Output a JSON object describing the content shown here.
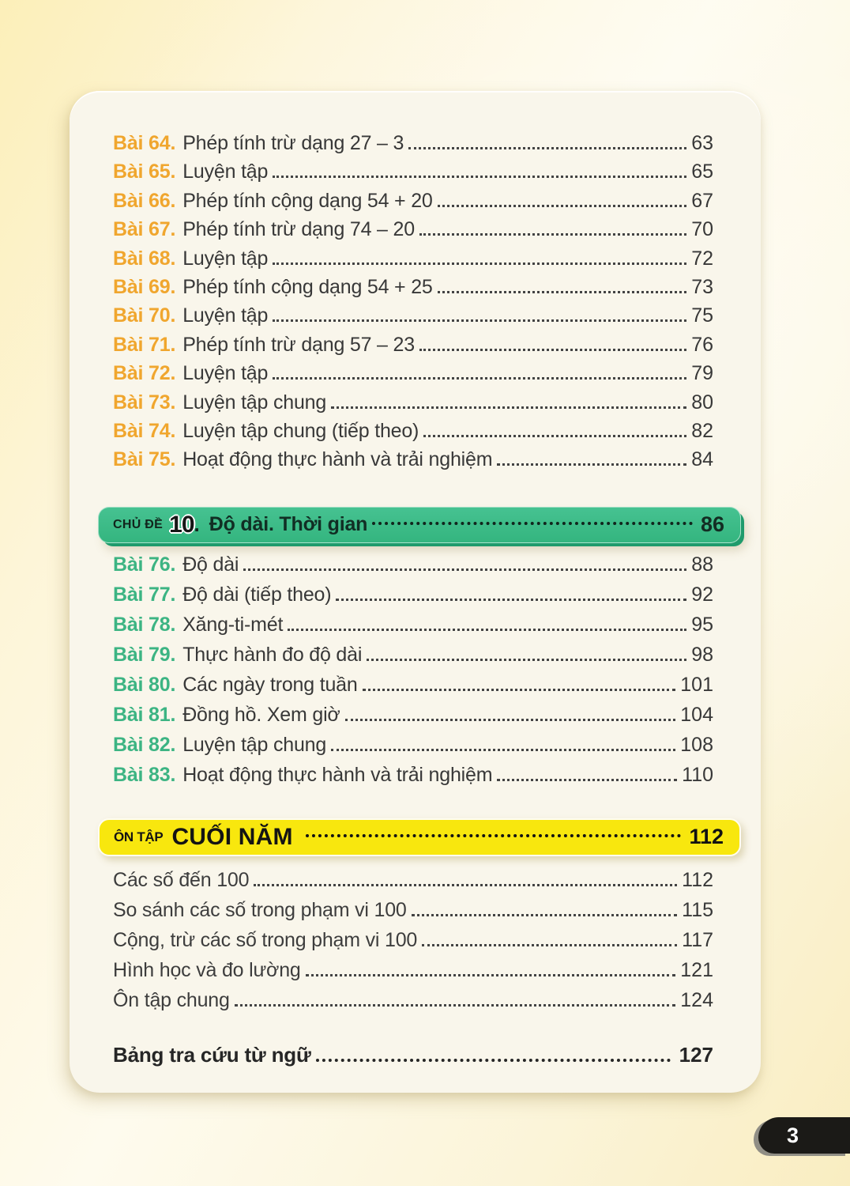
{
  "colors": {
    "lesson_label_part1": "#f0a62e",
    "lesson_label_part2": "#3cb483",
    "chapter_banner_bg": "#3bbb87",
    "review_banner_bg": "#f8e70e",
    "page_tab_bg": "#1b1a17",
    "card_bg": "#f9f6eb"
  },
  "toc": {
    "part1": {
      "items": [
        {
          "label": "Bài 64.",
          "title": "Phép tính trừ dạng 27 – 3",
          "page": "63"
        },
        {
          "label": "Bài 65.",
          "title": "Luyện tập",
          "page": "65"
        },
        {
          "label": "Bài 66.",
          "title": "Phép tính cộng dạng 54 + 20",
          "page": "67"
        },
        {
          "label": "Bài 67.",
          "title": "Phép tính trừ dạng 74 – 20",
          "page": "70"
        },
        {
          "label": "Bài 68.",
          "title": "Luyện tập",
          "page": "72"
        },
        {
          "label": "Bài 69.",
          "title": "Phép tính cộng dạng 54 + 25",
          "page": "73"
        },
        {
          "label": "Bài 70.",
          "title": "Luyện tập",
          "page": "75"
        },
        {
          "label": "Bài 71.",
          "title": "Phép tính trừ dạng 57 – 23",
          "page": "76"
        },
        {
          "label": "Bài 72.",
          "title": "Luyện tập",
          "page": "79"
        },
        {
          "label": "Bài 73.",
          "title": "Luyện tập chung",
          "page": "80"
        },
        {
          "label": "Bài 74.",
          "title": "Luyện tập chung (tiếp theo)",
          "page": "82"
        },
        {
          "label": "Bài 75.",
          "title": "Hoạt động thực hành và trải nghiệm",
          "page": "84"
        }
      ]
    },
    "chapter_banner": {
      "tag": "CHỦ ĐỀ",
      "number": "10",
      "dot": ".",
      "title": "Độ dài. Thời gian",
      "page": "86"
    },
    "part2": {
      "items": [
        {
          "label": "Bài 76.",
          "title": "Độ dài",
          "page": "88"
        },
        {
          "label": "Bài 77.",
          "title": "Độ dài (tiếp theo)",
          "page": "92"
        },
        {
          "label": "Bài 78.",
          "title": "Xăng-ti-mét",
          "page": "95"
        },
        {
          "label": "Bài 79.",
          "title": "Thực hành đo độ dài",
          "page": "98"
        },
        {
          "label": "Bài 80.",
          "title": "Các ngày trong tuần",
          "page": "101"
        },
        {
          "label": "Bài 81.",
          "title": "Đồng hồ. Xem giờ",
          "page": "104"
        },
        {
          "label": "Bài 82.",
          "title": "Luyện tập chung",
          "page": "108"
        },
        {
          "label": "Bài 83.",
          "title": "Hoạt động thực hành và trải nghiệm",
          "page": "110"
        }
      ]
    },
    "review_banner": {
      "tag": "ÔN TẬP",
      "title": "CUỐI NĂM",
      "page": "112"
    },
    "part3": {
      "items": [
        {
          "title": "Các số đến 100",
          "page": "112"
        },
        {
          "title": "So sánh các số trong phạm vi 100",
          "page": "115"
        },
        {
          "title": "Cộng, trừ các số trong phạm vi 100",
          "page": "117"
        },
        {
          "title": "Hình học và đo lường",
          "page": "121"
        },
        {
          "title": "Ôn tập chung",
          "page": "124"
        }
      ]
    },
    "index_entry": {
      "title": "Bảng tra cứu từ ngữ",
      "page": "127"
    }
  },
  "footer": {
    "page_number": "3"
  }
}
